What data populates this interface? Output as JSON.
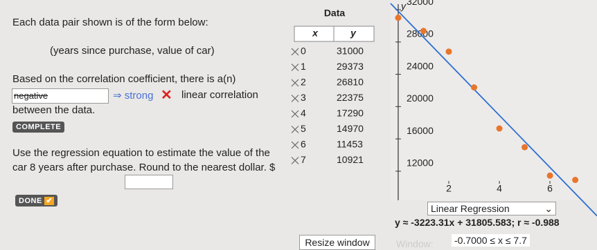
{
  "problem": {
    "intro": "Each data pair shown is of the form below:",
    "pair_form": "(years since purchase, value of car)",
    "question_1": "Based on the correlation coefficient, there is a(n)",
    "answer": "negative",
    "correction": "⇒ strong",
    "question_1_end": "linear correlation",
    "question_1_tail": "between the data.",
    "status_1": "COMPLETE",
    "question_2": "Use the regression equation to estimate the value of the car 8 years after purchase. Round to the nearest dollar. $",
    "status_2": "DONE"
  },
  "chart_data": {
    "type": "scatter",
    "table_title": "Data",
    "x_label": "x",
    "y_label": "y",
    "x": [
      0,
      1,
      2,
      3,
      4,
      5,
      6,
      7
    ],
    "values": [
      31000,
      29373,
      26810,
      22375,
      17290,
      14970,
      11453,
      10921
    ],
    "color": "#e8762c",
    "line_color": "#2f6fd0",
    "xlim": [
      -0.3,
      7.86
    ],
    "ylim": [
      8400,
      33200
    ],
    "xticks": [
      2,
      4,
      6
    ],
    "yticks": [
      12000,
      16000,
      20000,
      24000,
      28000,
      32000
    ],
    "regression_type": "Linear Regression",
    "regression": {
      "slope": -3223.31,
      "intercept": 31805.583
    },
    "regression_label": "y ≈ -3223.31x + 31805.583; r ≈ -0.988"
  },
  "controls": {
    "resize": "Resize window",
    "window_label": "Window:",
    "window_range": "-0.7000 ≤ x ≤ 7.7"
  }
}
